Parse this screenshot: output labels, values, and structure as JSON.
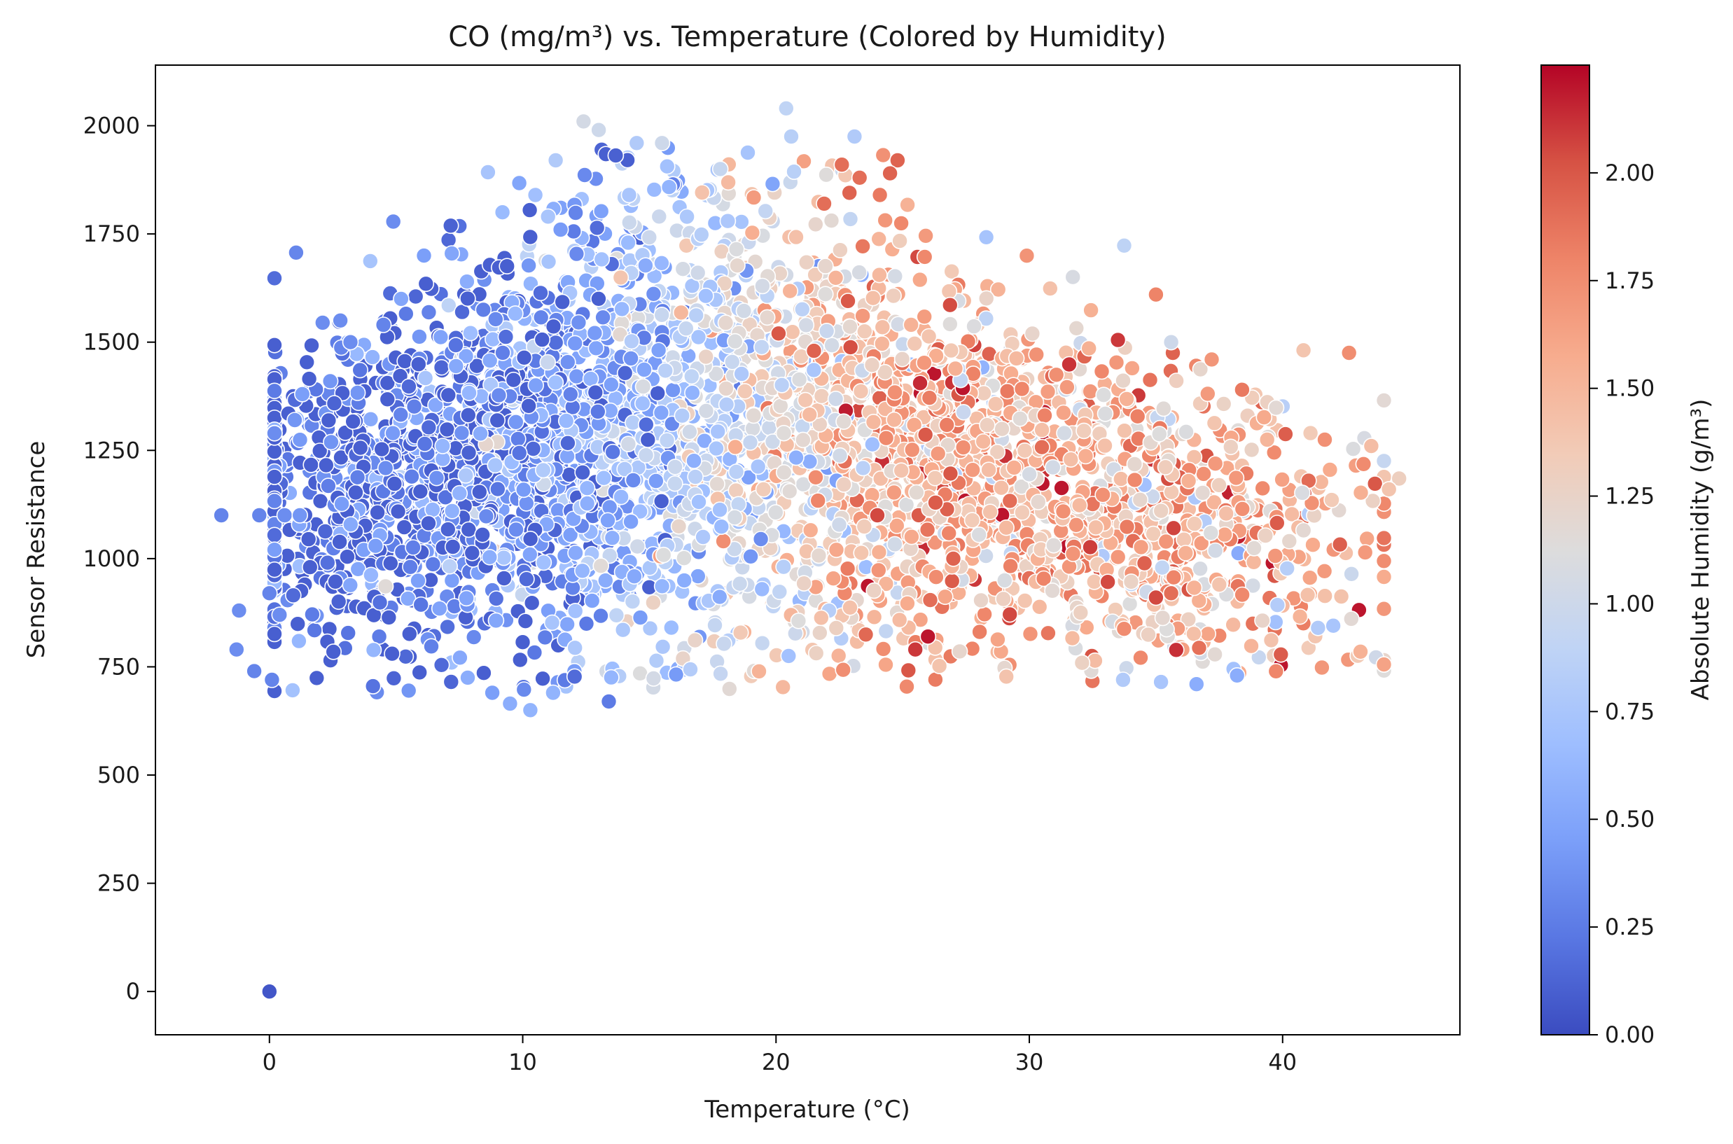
{
  "chart_data": {
    "type": "scatter",
    "title": "CO (mg/m³) vs. Temperature (Colored by Humidity)",
    "xlabel": "Temperature (°C)",
    "ylabel": "Sensor Resistance",
    "xlim": [
      -4.5,
      47
    ],
    "ylim": [
      -100,
      2140
    ],
    "xticks": [
      0,
      10,
      20,
      30,
      40
    ],
    "yticks": [
      0,
      250,
      500,
      750,
      1000,
      1250,
      1500,
      1750,
      2000
    ],
    "grid": false,
    "legend": "none",
    "colorbar": {
      "label": "Absolute Humidity (g/m³)",
      "colormap": "coolwarm",
      "range": [
        0,
        2.25
      ],
      "ticks": [
        0.0,
        0.25,
        0.5,
        0.75,
        1.0,
        1.25,
        1.5,
        1.75,
        2.0
      ],
      "stops": [
        "#3b4cc0",
        "#5977e3",
        "#7b9ff9",
        "#9ebeff",
        "#c0d4f5",
        "#dddcdc",
        "#f2cbb7",
        "#f7ac8e",
        "#ee8468",
        "#d65244",
        "#b40426"
      ]
    },
    "points": [
      [
        0.0,
        0,
        0.05
      ],
      [
        -1.9,
        1100,
        0.3
      ],
      [
        -0.4,
        1100,
        0.3
      ],
      [
        0.6,
        1100,
        0.35
      ],
      [
        1.2,
        1100,
        0.4
      ],
      [
        -1.2,
        880,
        0.35
      ],
      [
        -1.3,
        790,
        0.35
      ],
      [
        -0.6,
        740,
        0.3
      ],
      [
        0.1,
        720,
        0.3
      ],
      [
        0.4,
        870,
        0.35
      ],
      [
        0.0,
        920,
        0.3
      ],
      [
        2.1,
        1545,
        0.35
      ],
      [
        2.8,
        1550,
        0.35
      ],
      [
        3.2,
        1500,
        0.35
      ],
      [
        4.5,
        1540,
        0.3
      ],
      [
        6.1,
        1700,
        0.45
      ],
      [
        7.2,
        1705,
        0.5
      ],
      [
        1.0,
        1320,
        0.4
      ],
      [
        1.3,
        1380,
        0.45
      ],
      [
        2.4,
        1410,
        0.4
      ],
      [
        5.2,
        1600,
        0.5
      ],
      [
        7.8,
        1640,
        0.55
      ],
      [
        9.2,
        1800,
        0.65
      ],
      [
        10.5,
        1840,
        0.7
      ],
      [
        11.0,
        1790,
        0.75
      ],
      [
        11.3,
        1920,
        0.8
      ],
      [
        12.4,
        2010,
        1.05
      ],
      [
        13.0,
        1990,
        1.0
      ],
      [
        14.5,
        1960,
        0.8
      ],
      [
        15.5,
        1960,
        1.0
      ],
      [
        14.2,
        1840,
        0.75
      ],
      [
        20.4,
        2040,
        0.9
      ],
      [
        20.6,
        1975,
        0.85
      ],
      [
        23.1,
        1975,
        0.8
      ],
      [
        17.8,
        1900,
        0.95
      ],
      [
        22.6,
        1910,
        1.9
      ],
      [
        24.8,
        1920,
        1.95
      ],
      [
        23.3,
        1880,
        1.9
      ],
      [
        24.5,
        1890,
        1.95
      ],
      [
        24.1,
        1840,
        1.85
      ],
      [
        21.9,
        1820,
        1.9
      ],
      [
        22.9,
        1845,
        1.95
      ],
      [
        35.0,
        1610,
        1.8
      ],
      [
        33.5,
        1505,
        2.1
      ],
      [
        37.2,
        1460,
        1.7
      ],
      [
        38.4,
        1390,
        1.85
      ],
      [
        35.6,
        1500,
        1.0
      ],
      [
        43.5,
        1260,
        1.45
      ],
      [
        44.6,
        1185,
        1.3
      ],
      [
        44.2,
        1160,
        1.4
      ],
      [
        41.1,
        1290,
        1.35
      ],
      [
        33.7,
        720,
        0.8
      ],
      [
        35.2,
        715,
        0.75
      ],
      [
        36.6,
        710,
        0.55
      ],
      [
        38.2,
        730,
        0.55
      ],
      [
        41.4,
        840,
        0.8
      ],
      [
        42.0,
        845,
        0.75
      ],
      [
        13.4,
        670,
        0.25
      ],
      [
        10.3,
        650,
        0.6
      ],
      [
        9.5,
        665,
        0.55
      ],
      [
        8.8,
        690,
        0.45
      ],
      [
        5.5,
        695,
        0.4
      ],
      [
        11.2,
        690,
        0.6
      ],
      [
        35.0,
        910,
        2.05
      ],
      [
        35.6,
        920,
        1.9
      ],
      [
        37.5,
        940,
        1.4
      ],
      [
        26.0,
        820,
        2.2
      ],
      [
        25.5,
        790,
        2.1
      ],
      [
        20.1,
        1520,
        2.0
      ],
      [
        21.5,
        1480,
        1.95
      ],
      [
        19.0,
        1005,
        0.4
      ],
      [
        19.4,
        1045,
        0.35
      ],
      [
        24.0,
        1100,
        2.05
      ],
      [
        27.0,
        1000,
        1.95
      ]
    ]
  }
}
